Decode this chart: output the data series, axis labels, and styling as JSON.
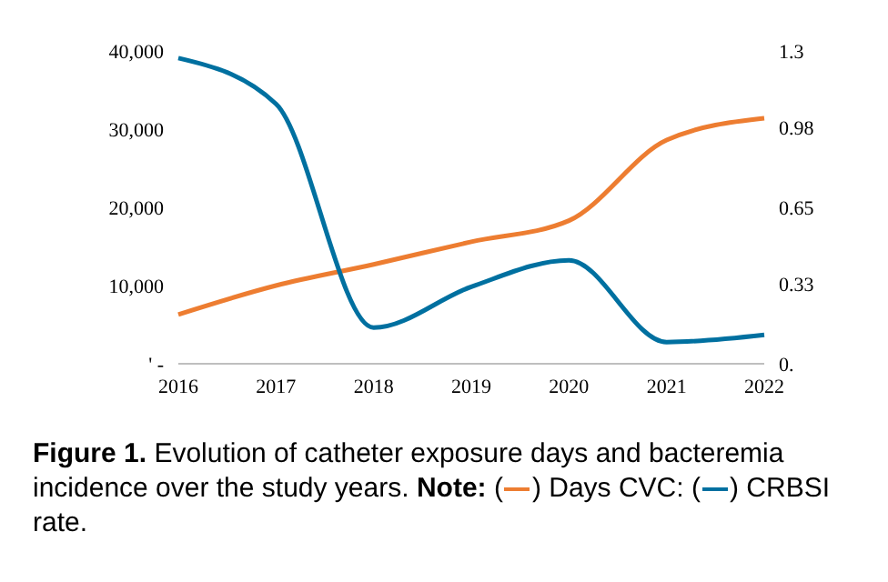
{
  "chart_data": {
    "type": "line",
    "title": "Figure 1.",
    "subtitle": "Evolution of catheter exposure days and bacteremia incidence over the study years.",
    "annotations": [
      "Note:",
      "(",
      ")",
      ":",
      "."
    ],
    "categories": [
      "2016",
      "2017",
      "2018",
      "2019",
      "2020",
      "2021",
      "2022"
    ],
    "series": [
      {
        "name": "Days CVC",
        "color": "#ed7d31",
        "values": [
          6300,
          10000,
          12700,
          15600,
          18300,
          28600,
          31400
        ]
      },
      {
        "name": "CRBSI rate",
        "color": "#0070a0",
        "axis": "y2",
        "values": [
          1.27,
          1.08,
          0.15,
          0.32,
          0.43,
          0.09,
          0.12
        ]
      }
    ],
    "ylim": [
      0,
      40000
    ],
    "yticks": [
      {
        "value": 0,
        "label": "' -"
      },
      {
        "value": 10000,
        "label": "10,000"
      },
      {
        "value": 20000,
        "label": "20,000"
      },
      {
        "value": 30000,
        "label": "30,000"
      },
      {
        "value": 40000,
        "label": "40,000"
      }
    ],
    "y2lim": [
      0,
      1.3
    ],
    "y2ticks": [
      {
        "value": 0,
        "label": "0."
      },
      0.33,
      0.65,
      0.98,
      1.3
    ],
    "grid": false,
    "legend": "bottom",
    "marker": "none",
    "line_style": "solid"
  }
}
